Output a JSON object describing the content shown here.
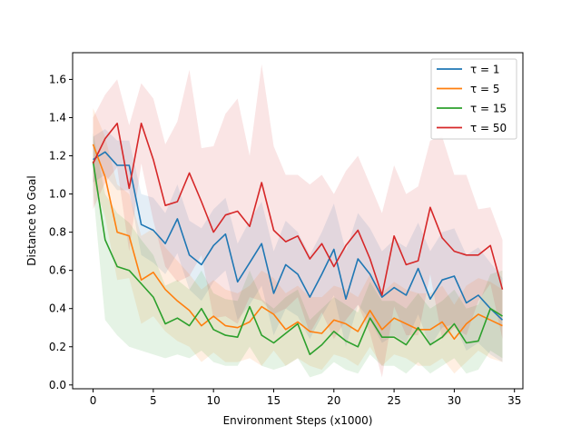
{
  "chart_data": {
    "type": "line",
    "title": "",
    "xlabel": "Environment Steps (x1000)",
    "ylabel": "Distance to Goal",
    "xlim": [
      -1.7,
      35.7
    ],
    "ylim": [
      -0.02,
      1.74
    ],
    "xticks": [
      0,
      5,
      10,
      15,
      20,
      25,
      30,
      35
    ],
    "yticks": [
      0.0,
      0.2,
      0.4,
      0.6,
      0.8,
      1.0,
      1.2,
      1.4,
      1.6
    ],
    "ytick_labels": [
      "0.0",
      "0.2",
      "0.4",
      "0.6",
      "0.8",
      "1.0",
      "1.2",
      "1.4",
      "1.6"
    ],
    "legend_position": "top-right",
    "x": [
      0,
      1,
      2,
      3,
      4,
      5,
      6,
      7,
      8,
      9,
      10,
      11,
      12,
      13,
      14,
      15,
      16,
      17,
      18,
      19,
      20,
      21,
      22,
      23,
      24,
      25,
      26,
      27,
      28,
      29,
      30,
      31,
      32,
      33,
      34
    ],
    "series": [
      {
        "name": "τ = 1",
        "color": "#1f77b4",
        "values": [
          1.18,
          1.22,
          1.15,
          1.15,
          0.84,
          0.81,
          0.74,
          0.87,
          0.68,
          0.63,
          0.73,
          0.79,
          0.54,
          0.64,
          0.74,
          0.48,
          0.63,
          0.58,
          0.46,
          0.58,
          0.71,
          0.45,
          0.66,
          0.58,
          0.46,
          0.51,
          0.47,
          0.61,
          0.45,
          0.55,
          0.57,
          0.43,
          0.47,
          0.4,
          0.34
        ],
        "upper": [
          1.3,
          1.34,
          1.28,
          1.28,
          1.0,
          0.98,
          0.9,
          1.05,
          0.86,
          0.82,
          0.92,
          0.98,
          0.74,
          0.86,
          0.96,
          0.7,
          0.86,
          0.8,
          0.68,
          0.8,
          0.95,
          0.7,
          0.9,
          0.82,
          0.7,
          0.76,
          0.72,
          0.85,
          0.7,
          0.8,
          0.82,
          0.68,
          0.72,
          0.64,
          0.56
        ],
        "lower": [
          1.06,
          1.1,
          1.02,
          1.02,
          0.68,
          0.64,
          0.58,
          0.69,
          0.5,
          0.44,
          0.54,
          0.6,
          0.34,
          0.42,
          0.52,
          0.26,
          0.4,
          0.36,
          0.24,
          0.36,
          0.47,
          0.2,
          0.42,
          0.34,
          0.22,
          0.26,
          0.22,
          0.37,
          0.2,
          0.3,
          0.32,
          0.18,
          0.22,
          0.16,
          0.12
        ]
      },
      {
        "name": "τ = 5",
        "color": "#ff7f0e",
        "values": [
          1.26,
          1.09,
          0.8,
          0.78,
          0.55,
          0.59,
          0.5,
          0.44,
          0.39,
          0.31,
          0.36,
          0.31,
          0.3,
          0.33,
          0.41,
          0.37,
          0.29,
          0.33,
          0.28,
          0.27,
          0.34,
          0.32,
          0.28,
          0.39,
          0.29,
          0.35,
          0.32,
          0.29,
          0.29,
          0.33,
          0.24,
          0.32,
          0.37,
          0.34,
          0.31
        ],
        "upper": [
          1.45,
          1.3,
          1.05,
          1.0,
          0.78,
          0.82,
          0.72,
          0.65,
          0.58,
          0.5,
          0.55,
          0.5,
          0.48,
          0.52,
          0.6,
          0.56,
          0.48,
          0.52,
          0.46,
          0.46,
          0.52,
          0.5,
          0.46,
          0.58,
          0.48,
          0.54,
          0.5,
          0.48,
          0.48,
          0.52,
          0.42,
          0.52,
          0.56,
          0.54,
          0.5
        ],
        "lower": [
          1.07,
          0.88,
          0.55,
          0.56,
          0.32,
          0.36,
          0.28,
          0.23,
          0.2,
          0.12,
          0.17,
          0.12,
          0.12,
          0.14,
          0.1,
          0.18,
          0.1,
          0.14,
          0.1,
          0.08,
          0.16,
          0.14,
          0.1,
          0.2,
          0.1,
          0.16,
          0.14,
          0.1,
          0.1,
          0.14,
          0.06,
          0.12,
          0.18,
          0.14,
          0.12
        ]
      },
      {
        "name": "τ = 15",
        "color": "#2ca02c",
        "values": [
          1.17,
          0.76,
          0.62,
          0.6,
          0.53,
          0.46,
          0.32,
          0.35,
          0.31,
          0.4,
          0.29,
          0.26,
          0.25,
          0.41,
          0.26,
          0.22,
          0.27,
          0.32,
          0.16,
          0.21,
          0.28,
          0.23,
          0.2,
          0.35,
          0.25,
          0.25,
          0.21,
          0.3,
          0.21,
          0.25,
          0.32,
          0.22,
          0.23,
          0.4,
          0.36
        ],
        "upper": [
          1.32,
          1.0,
          0.9,
          0.85,
          0.76,
          0.68,
          0.52,
          0.55,
          0.5,
          0.6,
          0.48,
          0.45,
          0.44,
          0.6,
          0.45,
          0.4,
          0.46,
          0.5,
          0.34,
          0.4,
          0.46,
          0.42,
          0.38,
          0.54,
          0.44,
          0.44,
          0.4,
          0.48,
          0.4,
          0.44,
          0.5,
          0.4,
          0.42,
          0.58,
          0.6
        ],
        "lower": [
          1.02,
          0.34,
          0.26,
          0.2,
          0.18,
          0.16,
          0.14,
          0.16,
          0.14,
          0.18,
          0.12,
          0.1,
          0.1,
          0.2,
          0.1,
          0.08,
          0.1,
          0.14,
          0.04,
          0.06,
          0.12,
          0.08,
          0.06,
          0.16,
          0.1,
          0.1,
          0.06,
          0.12,
          0.06,
          0.1,
          0.14,
          0.06,
          0.08,
          0.18,
          0.14
        ]
      },
      {
        "name": "τ = 50",
        "color": "#d62728",
        "values": [
          1.16,
          1.29,
          1.37,
          1.03,
          1.37,
          1.18,
          0.94,
          0.96,
          1.11,
          0.96,
          0.8,
          0.89,
          0.91,
          0.83,
          1.06,
          0.81,
          0.75,
          0.78,
          0.66,
          0.74,
          0.62,
          0.73,
          0.81,
          0.66,
          0.47,
          0.78,
          0.63,
          0.65,
          0.93,
          0.77,
          0.7,
          0.68,
          0.68,
          0.73,
          0.5
        ],
        "upper": [
          1.4,
          1.52,
          1.6,
          1.36,
          1.58,
          1.5,
          1.26,
          1.38,
          1.65,
          1.24,
          1.25,
          1.42,
          1.5,
          1.2,
          1.68,
          1.25,
          1.1,
          1.1,
          1.05,
          1.1,
          1.0,
          1.12,
          1.2,
          1.05,
          0.9,
          1.15,
          1.0,
          1.04,
          1.28,
          1.3,
          1.1,
          1.1,
          0.92,
          0.93,
          0.76
        ],
        "lower": [
          0.92,
          1.06,
          1.14,
          0.7,
          1.16,
          0.86,
          0.62,
          0.54,
          0.57,
          0.68,
          0.35,
          0.36,
          0.32,
          0.46,
          0.44,
          0.37,
          0.4,
          0.46,
          0.27,
          0.38,
          0.24,
          0.34,
          0.42,
          0.27,
          0.04,
          0.41,
          0.26,
          0.26,
          0.58,
          0.24,
          0.3,
          0.26,
          0.44,
          0.53,
          0.24
        ]
      }
    ]
  }
}
